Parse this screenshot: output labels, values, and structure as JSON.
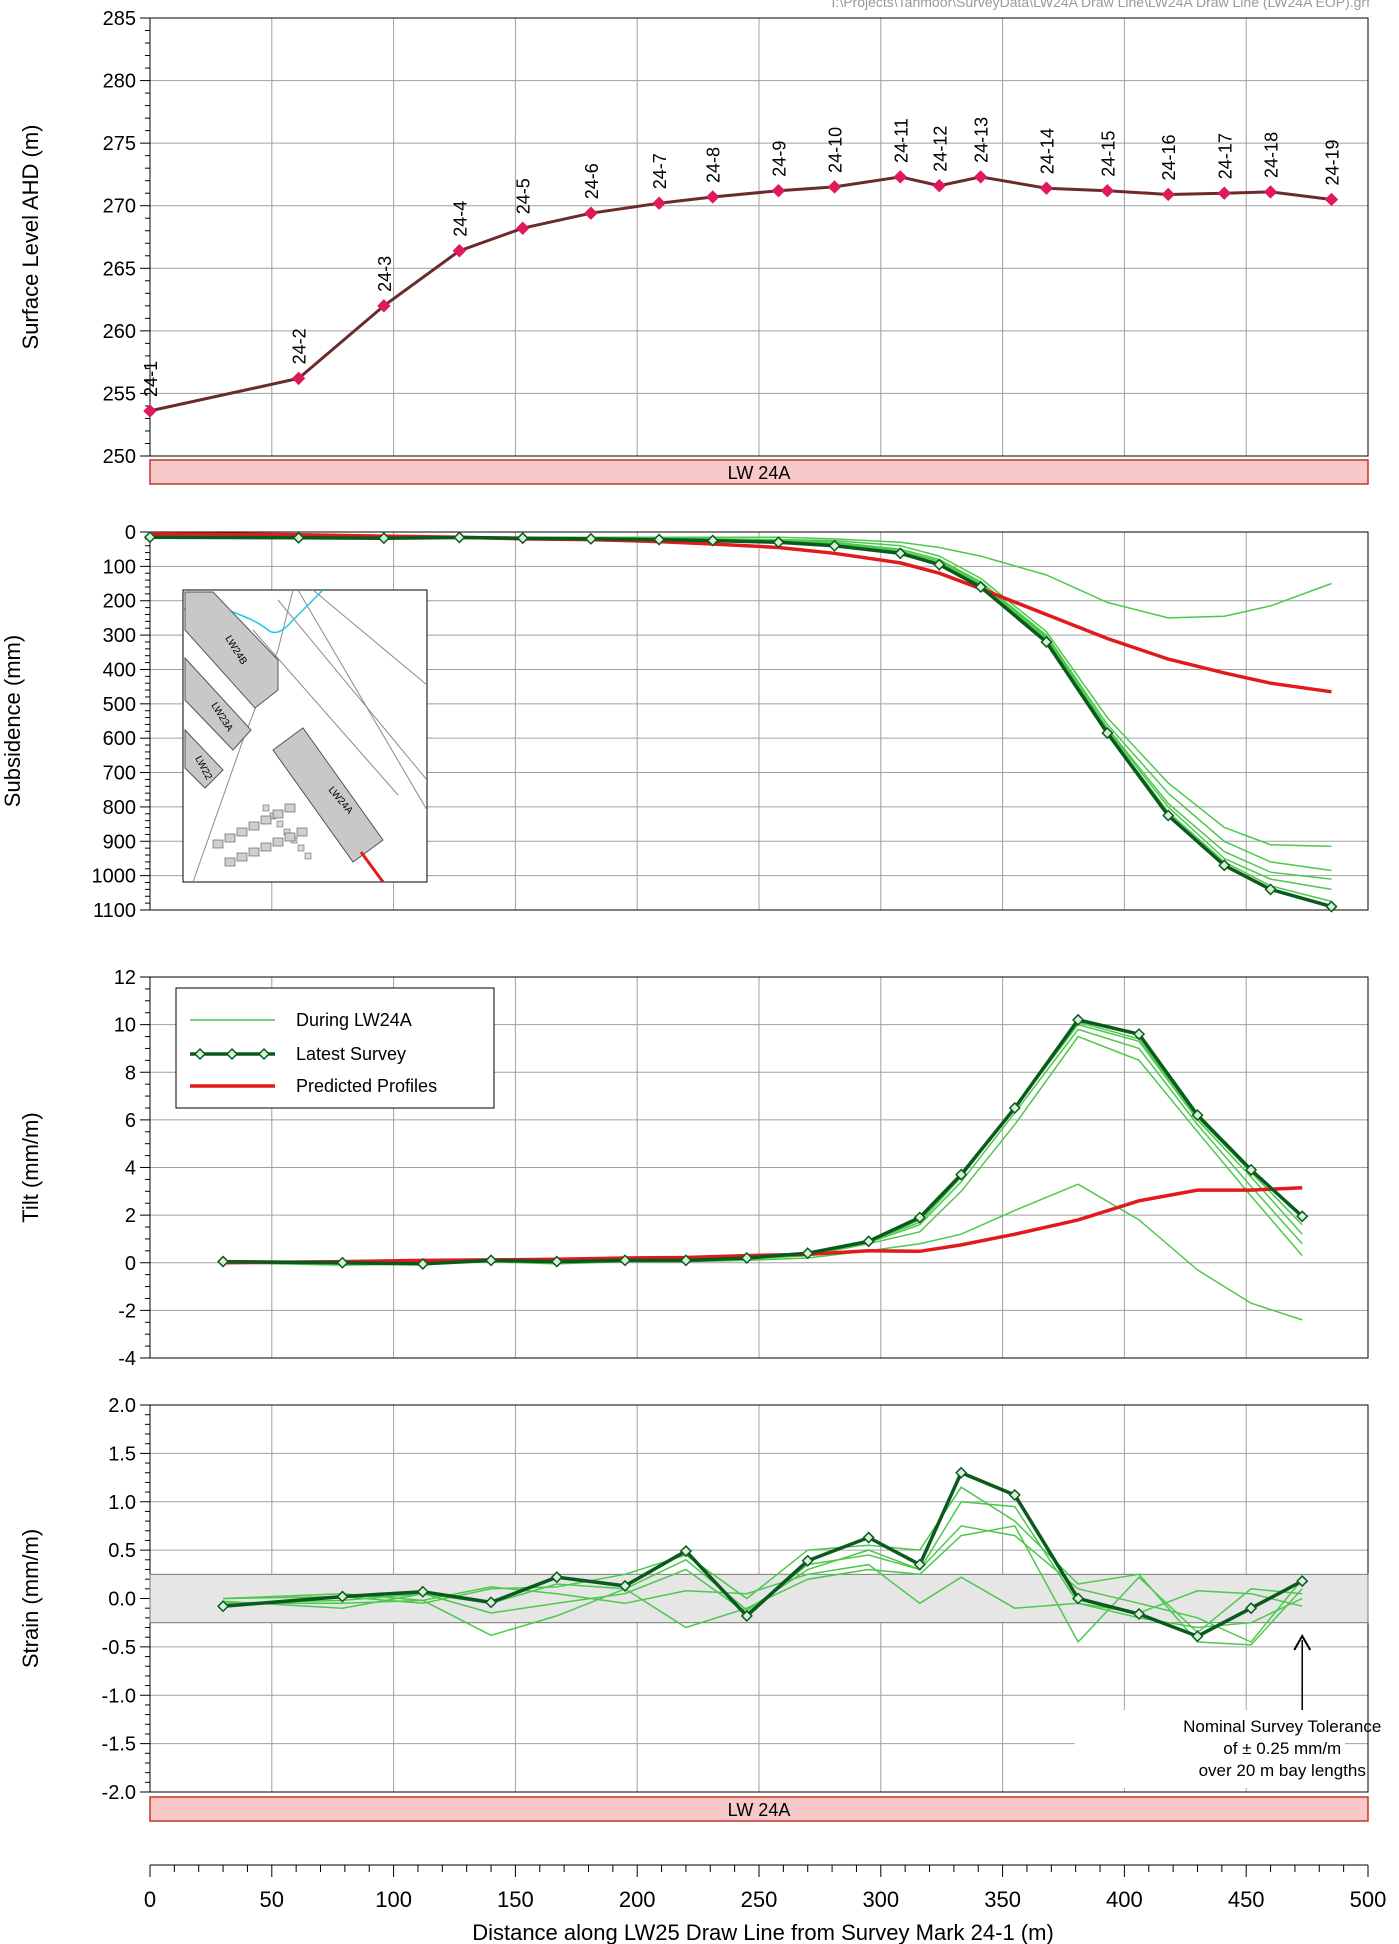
{
  "file_path": "I:\\Projects\\Tahmoor\\SurveyData\\LW24A Draw Line\\LW24A Draw Line (LW24A EOP).grf",
  "x_axis": {
    "label": "Distance along LW25 Draw Line from Survey Mark 24-1 (m)",
    "min": 0,
    "max": 500,
    "ticks": [
      "0",
      "50",
      "100",
      "150",
      "200",
      "250",
      "300",
      "350",
      "400",
      "450",
      "500"
    ]
  },
  "longwall_label": "LW 24A",
  "legend": {
    "during": "During LW24A",
    "latest": "Latest Survey",
    "predicted": "Predicted Profiles"
  },
  "tolerance_note": {
    "line1": "Nominal Survey Tolerance",
    "line2": "of ± 0.25 mm/m",
    "line3": "over 20 m bay lengths"
  },
  "inset_map": {
    "labels": [
      "LW24B",
      "LW23A",
      "LW22",
      "LW24A"
    ]
  },
  "colors": {
    "surface_line": "#6b2b2b",
    "surface_marker": "#e0195a",
    "during": "#4cc94c",
    "latest": "#0a5a1e",
    "latest_marker_fill": "#d8f0d8",
    "predicted": "#e31a1c",
    "lw_bar_fill": "#f7c8c8",
    "lw_bar_stroke": "#c0392b",
    "grid": "#a0a0a0",
    "tolerance_band": "#e6e6e6"
  },
  "chart_data": [
    {
      "type": "line",
      "ylabel": "Surface Level AHD (m)",
      "ylim": [
        250,
        285
      ],
      "yticks": [
        "250",
        "255",
        "260",
        "265",
        "270",
        "275",
        "280",
        "285"
      ],
      "series": [
        {
          "x": [
            0,
            61,
            96,
            127,
            153,
            181,
            209,
            231,
            258,
            281,
            308,
            324,
            341,
            368,
            393,
            418,
            441,
            460,
            485
          ],
          "values": [
            253.6,
            256.2,
            262.0,
            266.4,
            268.2,
            269.4,
            270.2,
            270.7,
            271.2,
            271.5,
            272.3,
            271.6,
            272.3,
            271.4,
            271.2,
            270.9,
            271.0,
            271.1,
            270.5
          ],
          "point_labels": [
            "24-1",
            "24-2",
            "24-3",
            "24-4",
            "24-5",
            "24-6",
            "24-7",
            "24-8",
            "24-9",
            "24-10",
            "24-11",
            "24-12",
            "24-13",
            "24-14",
            "24-15",
            "24-16",
            "24-17",
            "24-18",
            "24-19"
          ]
        }
      ]
    },
    {
      "type": "line",
      "ylabel": "Subsidence (mm)",
      "ylim": [
        0,
        1100
      ],
      "inverted": true,
      "yticks": [
        "0",
        "100",
        "200",
        "300",
        "400",
        "500",
        "600",
        "700",
        "800",
        "900",
        "1000",
        "1100"
      ],
      "x": [
        0,
        61,
        96,
        127,
        153,
        181,
        209,
        231,
        258,
        281,
        308,
        324,
        341,
        368,
        393,
        418,
        441,
        460,
        485
      ],
      "series": [
        {
          "role": "predicted",
          "values": [
            5,
            8,
            12,
            15,
            20,
            22,
            28,
            35,
            45,
            62,
            90,
            120,
            165,
            240,
            310,
            370,
            410,
            440,
            465
          ]
        },
        {
          "role": "during",
          "values": [
            15,
            16,
            16,
            15,
            15,
            15,
            15,
            15,
            15,
            20,
            30,
            45,
            70,
            125,
            205,
            250,
            245,
            215,
            150
          ]
        },
        {
          "role": "during",
          "values": [
            15,
            16,
            16,
            15,
            16,
            17,
            18,
            20,
            22,
            25,
            40,
            70,
            135,
            290,
            540,
            730,
            860,
            910,
            915
          ]
        },
        {
          "role": "during",
          "values": [
            15,
            16,
            16,
            15,
            17,
            18,
            20,
            22,
            24,
            30,
            50,
            80,
            145,
            300,
            560,
            760,
            900,
            960,
            985
          ]
        },
        {
          "role": "during",
          "values": [
            15,
            16,
            16,
            15,
            17,
            18,
            20,
            22,
            25,
            32,
            55,
            85,
            150,
            305,
            570,
            790,
            930,
            990,
            1010
          ]
        },
        {
          "role": "during",
          "values": [
            15,
            16,
            16,
            15,
            17,
            19,
            21,
            23,
            26,
            34,
            58,
            90,
            152,
            310,
            575,
            800,
            950,
            1010,
            1040
          ]
        },
        {
          "role": "during",
          "values": [
            15,
            16,
            16,
            15,
            17,
            19,
            21,
            24,
            27,
            35,
            60,
            92,
            155,
            315,
            580,
            815,
            960,
            1030,
            1075
          ]
        },
        {
          "role": "latest",
          "values": [
            15,
            17,
            18,
            16,
            18,
            20,
            22,
            25,
            30,
            40,
            62,
            95,
            160,
            320,
            585,
            825,
            970,
            1040,
            1090
          ]
        }
      ]
    },
    {
      "type": "line",
      "ylabel": "Tilt (mm/m)",
      "ylim": [
        -4,
        12
      ],
      "yticks": [
        "-4",
        "-2",
        "0",
        "2",
        "4",
        "6",
        "8",
        "10",
        "12"
      ],
      "x": [
        30,
        79,
        112,
        140,
        167,
        195,
        220,
        245,
        270,
        295,
        316,
        333,
        355,
        381,
        406,
        430,
        452,
        473
      ],
      "series": [
        {
          "role": "predicted",
          "values": [
            0.0,
            0.05,
            0.1,
            0.12,
            0.15,
            0.2,
            0.22,
            0.3,
            0.35,
            0.5,
            0.48,
            0.75,
            1.2,
            1.8,
            2.6,
            3.05,
            3.05,
            3.15
          ]
        },
        {
          "role": "during",
          "values": [
            0.0,
            -0.1,
            -0.05,
            0.05,
            -0.05,
            0.05,
            0.05,
            0.1,
            0.2,
            0.5,
            0.8,
            1.2,
            2.2,
            3.3,
            1.8,
            -0.3,
            -1.7,
            -2.4
          ]
        },
        {
          "role": "during",
          "values": [
            0.0,
            0.0,
            -0.05,
            0.1,
            0.05,
            0.1,
            0.1,
            0.15,
            0.3,
            0.8,
            1.3,
            3.0,
            5.8,
            9.5,
            8.5,
            5.5,
            2.8,
            0.3
          ]
        },
        {
          "role": "during",
          "values": [
            0.0,
            0.0,
            -0.05,
            0.1,
            0.05,
            0.1,
            0.1,
            0.2,
            0.35,
            0.85,
            1.6,
            3.4,
            6.3,
            9.8,
            9.0,
            5.8,
            3.2,
            0.8
          ]
        },
        {
          "role": "during",
          "values": [
            0.0,
            0.0,
            -0.05,
            0.1,
            0.05,
            0.1,
            0.1,
            0.2,
            0.4,
            0.9,
            1.7,
            3.6,
            6.5,
            10.0,
            9.3,
            6.0,
            3.6,
            1.2
          ]
        },
        {
          "role": "during",
          "values": [
            0.0,
            0.0,
            -0.05,
            0.1,
            0.05,
            0.1,
            0.1,
            0.2,
            0.4,
            0.9,
            1.8,
            3.7,
            6.5,
            10.1,
            9.4,
            6.1,
            3.8,
            1.6
          ]
        },
        {
          "role": "latest",
          "values": [
            0.05,
            0.0,
            -0.05,
            0.1,
            0.05,
            0.1,
            0.1,
            0.2,
            0.4,
            0.9,
            1.9,
            3.7,
            6.5,
            10.2,
            9.6,
            6.2,
            3.9,
            1.95
          ]
        }
      ]
    },
    {
      "type": "line",
      "ylabel": "Strain (mm/m)",
      "ylim": [
        -2.0,
        2.0
      ],
      "yticks": [
        "-2.0",
        "-1.5",
        "-1.0",
        "-0.5",
        "0.0",
        "0.5",
        "1.0",
        "1.5",
        "2.0"
      ],
      "tolerance_band": [
        -0.25,
        0.25
      ],
      "x": [
        30,
        79,
        112,
        140,
        167,
        195,
        220,
        245,
        270,
        295,
        316,
        333,
        355,
        381,
        406,
        430,
        452,
        473
      ],
      "series": [
        {
          "role": "during",
          "values": [
            -0.05,
            -0.05,
            -0.02,
            -0.38,
            -0.18,
            0.1,
            -0.3,
            -0.1,
            0.2,
            0.3,
            0.25,
            0.65,
            0.75,
            -0.45,
            0.22,
            -0.35,
            0.1,
            0.05
          ]
        },
        {
          "role": "during",
          "values": [
            0.0,
            0.02,
            -0.05,
            0.1,
            0.12,
            0.25,
            0.45,
            0.0,
            0.5,
            0.55,
            0.5,
            1.15,
            0.8,
            0.15,
            0.25,
            -0.45,
            -0.48,
            0.1
          ]
        },
        {
          "role": "during",
          "values": [
            -0.03,
            -0.1,
            0.05,
            -0.15,
            -0.05,
            0.05,
            0.3,
            -0.15,
            0.35,
            0.45,
            0.3,
            1.0,
            0.95,
            -0.05,
            -0.2,
            -0.3,
            -0.25,
            0.0
          ]
        },
        {
          "role": "during",
          "values": [
            0.0,
            0.05,
            -0.02,
            0.12,
            0.05,
            -0.05,
            0.08,
            0.05,
            0.25,
            0.35,
            -0.05,
            0.22,
            -0.1,
            -0.05,
            -0.15,
            0.08,
            0.05,
            -0.08
          ]
        },
        {
          "role": "during",
          "values": [
            -0.05,
            -0.02,
            0.05,
            -0.05,
            0.15,
            0.1,
            0.4,
            -0.12,
            0.3,
            0.5,
            0.3,
            0.75,
            0.65,
            0.1,
            -0.05,
            -0.2,
            -0.45,
            0.2
          ]
        },
        {
          "role": "latest",
          "values": [
            -0.08,
            0.02,
            0.07,
            -0.04,
            0.22,
            0.13,
            0.49,
            -0.18,
            0.39,
            0.63,
            0.35,
            1.3,
            1.07,
            0.0,
            -0.16,
            -0.39,
            -0.1,
            0.18
          ]
        }
      ]
    }
  ]
}
